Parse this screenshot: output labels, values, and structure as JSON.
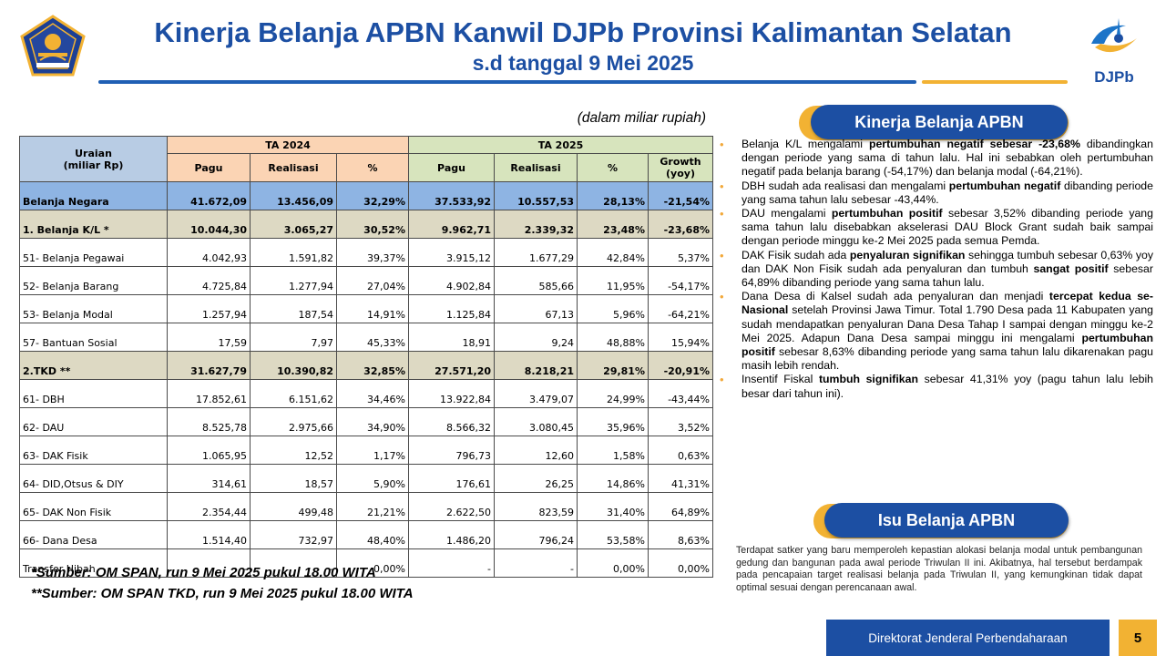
{
  "header": {
    "title": "Kinerja Belanja APBN Kanwil DJPb Provinsi Kalimantan Selatan",
    "subtitle": "s.d tanggal 9 Mei 2025",
    "brand_right": "DJPb"
  },
  "colors": {
    "brand_blue": "#1c4fa3",
    "accent_gold": "#f2b233"
  },
  "table": {
    "unit_note": "(dalam miliar rupiah)",
    "headers": {
      "uraian": "Uraian",
      "uraian_unit": "(miliar Rp)",
      "ta2024": "TA 2024",
      "ta2025": "TA 2025",
      "pagu": "Pagu",
      "realisasi": "Realisasi",
      "persen": "%",
      "growth": "Growth",
      "growth_sub": "(yoy)"
    },
    "rows": [
      {
        "label": "Belanja Negara",
        "pagu24": "41.672,09",
        "real24": "13.456,09",
        "pct24": "32,29%",
        "pagu25": "37.533,92",
        "real25": "10.557,53",
        "pct25": "28,13%",
        "growth": "-21,54%"
      },
      {
        "label": "1. Belanja  K/L  *",
        "pagu24": "10.044,30",
        "real24": "3.065,27",
        "pct24": "30,52%",
        "pagu25": "9.962,71",
        "real25": "2.339,32",
        "pct25": "23,48%",
        "growth": "-23,68%"
      },
      {
        "label": "51- Belanja Pegawai",
        "pagu24": "4.042,93",
        "real24": "1.591,82",
        "pct24": "39,37%",
        "pagu25": "3.915,12",
        "real25": "1.677,29",
        "pct25": "42,84%",
        "growth": "5,37%"
      },
      {
        "label": "52- Belanja Barang",
        "pagu24": "4.725,84",
        "real24": "1.277,94",
        "pct24": "27,04%",
        "pagu25": "4.902,84",
        "real25": "585,66",
        "pct25": "11,95%",
        "growth": "-54,17%"
      },
      {
        "label": "53- Belanja Modal",
        "pagu24": "1.257,94",
        "real24": "187,54",
        "pct24": "14,91%",
        "pagu25": "1.125,84",
        "real25": "67,13",
        "pct25": "5,96%",
        "growth": "-64,21%"
      },
      {
        "label": "57-  Bantuan  Sosial",
        "pagu24": "17,59",
        "real24": "7,97",
        "pct24": "45,33%",
        "pagu25": "18,91",
        "real25": "9,24",
        "pct25": "48,88%",
        "growth": "15,94%"
      },
      {
        "label": "2.TKD  **",
        "pagu24": "31.627,79",
        "real24": "10.390,82",
        "pct24": "32,85%",
        "pagu25": "27.571,20",
        "real25": "8.218,21",
        "pct25": "29,81%",
        "growth": "-20,91%"
      },
      {
        "label": "61- DBH",
        "pagu24": "17.852,61",
        "real24": "6.151,62",
        "pct24": "34,46%",
        "pagu25": "13.922,84",
        "real25": "3.479,07",
        "pct25": "24,99%",
        "growth": "-43,44%"
      },
      {
        "label": "62- DAU",
        "pagu24": "8.525,78",
        "real24": "2.975,66",
        "pct24": "34,90%",
        "pagu25": "8.566,32",
        "real25": "3.080,45",
        "pct25": "35,96%",
        "growth": "3,52%"
      },
      {
        "label": "63- DAK Fisik",
        "pagu24": "1.065,95",
        "real24": "12,52",
        "pct24": "1,17%",
        "pagu25": "796,73",
        "real25": "12,60",
        "pct25": "1,58%",
        "growth": "0,63%"
      },
      {
        "label": "64- DID,Otsus  & DIY",
        "pagu24": "314,61",
        "real24": "18,57",
        "pct24": "5,90%",
        "pagu25": "176,61",
        "real25": "26,25",
        "pct25": "14,86%",
        "growth": "41,31%"
      },
      {
        "label": "65- DAK Non Fisik",
        "pagu24": "2.354,44",
        "real24": "499,48",
        "pct24": "21,21%",
        "pagu25": "2.622,50",
        "real25": "823,59",
        "pct25": "31,40%",
        "growth": "64,89%"
      },
      {
        "label": "66- Dana Desa",
        "pagu24": "1.514,40",
        "real24": "732,97",
        "pct24": "48,40%",
        "pagu25": "1.486,20",
        "real25": "796,24",
        "pct25": "53,58%",
        "growth": "8,63%"
      },
      {
        "label": "Transfer Hibah",
        "pagu24": "-",
        "real24": "-",
        "pct24": "0,00%",
        "pagu25": "-",
        "real25": "-",
        "pct25": "0,00%",
        "growth": "0,00%"
      }
    ]
  },
  "sources": {
    "line1": "*Sumber: OM SPAN, run 9 Mei 2025 pukul 18.00 WITA",
    "line2": "**Sumber: OM SPAN TKD, run 9 Mei 2025 pukul 18.00 WITA"
  },
  "kinerja": {
    "heading": "Kinerja Belanja APBN",
    "bullets": [
      [
        "Belanja K/L mengalami ",
        {
          "b": "pertumbuhan negatif sebesar -23,68%"
        },
        " dibandingkan dengan periode yang sama di tahun lalu. Hal ini sebabkan oleh pertumbuhan negatif pada belanja barang (-54,17%) dan belanja modal (-64,21%)."
      ],
      [
        "DBH sudah ada realisasi dan mengalami ",
        {
          "b": "pertumbuhan negatif"
        },
        " dibanding periode yang sama tahun lalu sebesar -43,44%."
      ],
      [
        "DAU mengalami ",
        {
          "b": "pertumbuhan positif"
        },
        " sebesar 3,52% dibanding periode yang sama tahun lalu disebabkan akselerasi DAU Block Grant sudah baik sampai dengan periode minggu ke-2 Mei 2025 pada semua Pemda."
      ],
      [
        "DAK Fisik sudah ada ",
        {
          "b": "penyaluran signifikan"
        },
        " sehingga tumbuh sebesar 0,63% yoy dan DAK Non Fisik sudah ada penyaluran dan tumbuh ",
        {
          "b": "sangat positif"
        },
        " sebesar 64,89% dibanding periode yang sama tahun lalu."
      ],
      [
        "Dana Desa di Kalsel sudah ada penyaluran dan menjadi ",
        {
          "b": "tercepat kedua se-Nasional"
        },
        " setelah Provinsi Jawa Timur. Total 1.790 Desa pada 11 Kabupaten yang sudah mendapatkan penyaluran Dana Desa Tahap I sampai dengan minggu ke-2 Mei 2025. Adapun Dana Desa sampai minggu ini mengalami ",
        {
          "b": "pertumbuhan positif"
        },
        " sebesar 8,63% dibanding periode yang sama tahun lalu dikarenakan pagu masih lebih rendah."
      ],
      [
        "Insentif Fiskal ",
        {
          "b": "tumbuh signifikan"
        },
        " sebesar 41,31% yoy (pagu tahun lalu lebih besar dari tahun ini)."
      ]
    ]
  },
  "isu": {
    "heading": "Isu Belanja APBN",
    "text": "Terdapat satker yang baru memperoleh kepastian alokasi belanja modal untuk pembangunan gedung dan bangunan pada awal periode Triwulan II ini. Akibatnya, hal tersebut berdampak pada pencapaian target realisasi belanja pada Triwulan II, yang kemungkinan tidak dapat optimal sesuai dengan perencanaan awal."
  },
  "footer": {
    "org": "Direktorat Jenderal Perbendaharaan",
    "page_number": "5"
  }
}
